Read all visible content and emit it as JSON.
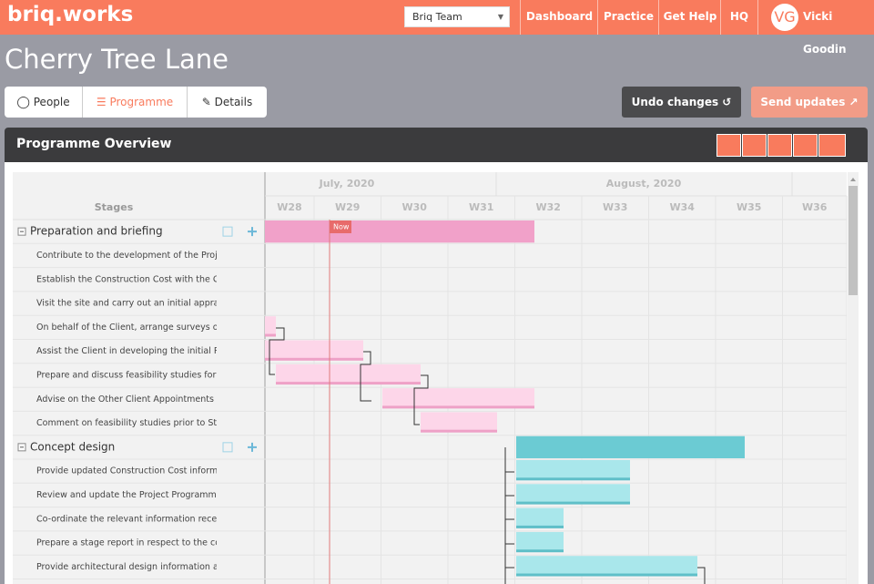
{
  "header": {
    "logo": "briq.works",
    "team_select": "Briq Team",
    "nav": [
      "Dashboard",
      "Practice",
      "Get Help",
      "HQ"
    ],
    "user": {
      "initials": "VG",
      "name": "Vicki Goodin"
    }
  },
  "page": {
    "title": "Cherry Tree Lane",
    "tabs": [
      "People",
      "Programme",
      "Details"
    ],
    "buttons": {
      "undo": "Undo changes",
      "send": "Send updates"
    }
  },
  "panel": {
    "title": "Programme Overview"
  },
  "gantt": {
    "stages_header": "Stages",
    "months": [
      "July, 2020",
      "August, 2020"
    ],
    "weeks": [
      "W28",
      "W29",
      "W30",
      "W31",
      "W32",
      "W33",
      "W34",
      "W35",
      "W36"
    ],
    "now_label": "Now",
    "rows": [
      {
        "label": "Preparation and briefing",
        "group": true
      },
      {
        "label": "Contribute to the development of the Project",
        "group": false
      },
      {
        "label": "Establish the Construction Cost with the Clie",
        "group": false
      },
      {
        "label": "Visit the site and carry out an initial apprais",
        "group": false
      },
      {
        "label": "On behalf of the Client, arrange surveys or o",
        "group": false
      },
      {
        "label": "Assist the Client in developing the initial Proj",
        "group": false
      },
      {
        "label": "Prepare and discuss feasibility studies for th",
        "group": false
      },
      {
        "label": "Advise on the Other Client Appointments re",
        "group": false
      },
      {
        "label": "Comment on feasibility studies prior to Stag",
        "group": false
      },
      {
        "label": "Concept design",
        "group": true
      },
      {
        "label": "Provide updated Construction Cost informa",
        "group": false
      },
      {
        "label": "Review and update the Project Programme",
        "group": false
      },
      {
        "label": "Co-ordinate the relevant information receiv",
        "group": false
      },
      {
        "label": "Prepare a stage report in respect to the con",
        "group": false
      },
      {
        "label": "Provide architectural design information an",
        "group": false
      }
    ]
  }
}
